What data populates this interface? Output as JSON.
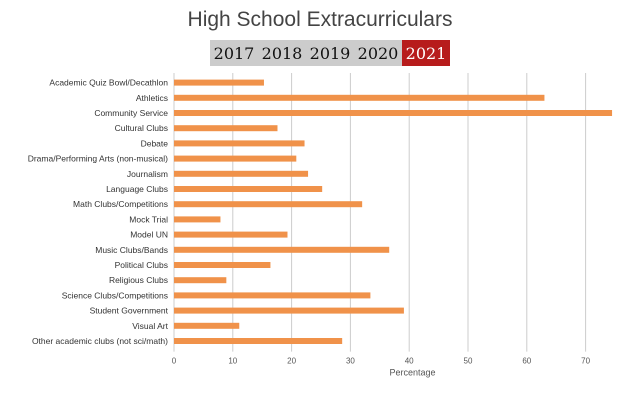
{
  "header": {
    "title": "High School Extracurriculars",
    "years": [
      "2017",
      "2018",
      "2019",
      "2020",
      "2021"
    ],
    "selected_year": "2021",
    "active_color": "#b71c1c"
  },
  "chart_data": {
    "type": "bar",
    "orientation": "horizontal",
    "title": "High School Extracurriculars",
    "categories": [
      "Academic Quiz Bowl/Decathlon",
      "Athletics",
      "Community Service",
      "Cultural Clubs",
      "Debate",
      "Drama/Performing Arts (non-musical)",
      "Journalism",
      "Language Clubs",
      "Math Clubs/Competitions",
      "Mock Trial",
      "Model UN",
      "Music Clubs/Bands",
      "Political Clubs",
      "Religious Clubs",
      "Science Clubs/Competitions",
      "Student Government",
      "Visual Art",
      "Other academic clubs (not sci/math)"
    ],
    "values": [
      15.3,
      63.0,
      74.5,
      17.6,
      22.2,
      20.8,
      22.8,
      25.2,
      32.0,
      7.9,
      19.3,
      36.6,
      16.4,
      8.9,
      33.4,
      39.1,
      11.1,
      28.6
    ],
    "xlabel": "Percentage",
    "ylabel": "",
    "xlim": [
      0,
      75
    ],
    "xticks": [
      0,
      10,
      20,
      30,
      40,
      50,
      60,
      70
    ],
    "bar_color": "#f0924a",
    "grid": true,
    "legend": "none"
  }
}
